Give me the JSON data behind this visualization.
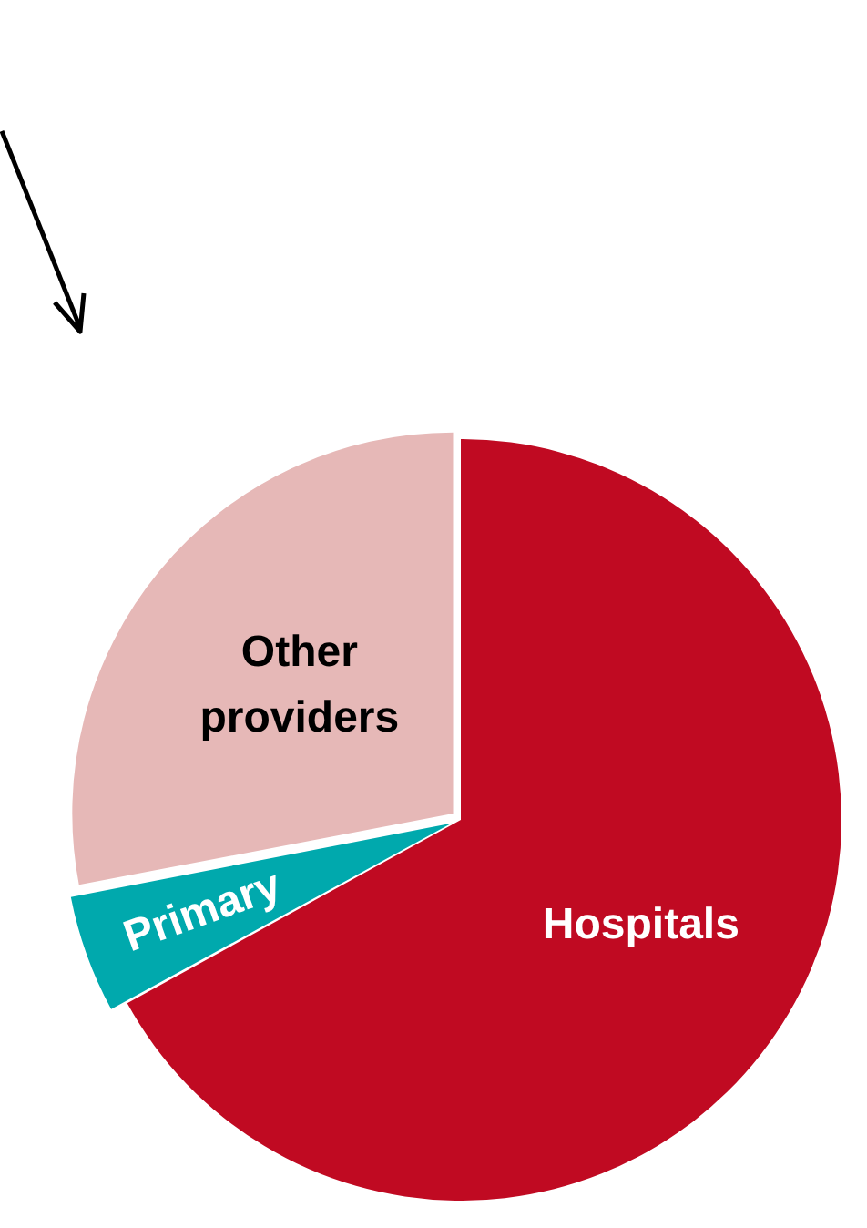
{
  "chart_data": {
    "type": "pie",
    "categories": [
      "Hospitals",
      "Primary",
      "Other providers"
    ],
    "values": [
      67,
      5,
      28
    ],
    "colors": [
      "#c00a22",
      "#00a9ad",
      "#e6b8b7"
    ],
    "legend": false
  }
}
